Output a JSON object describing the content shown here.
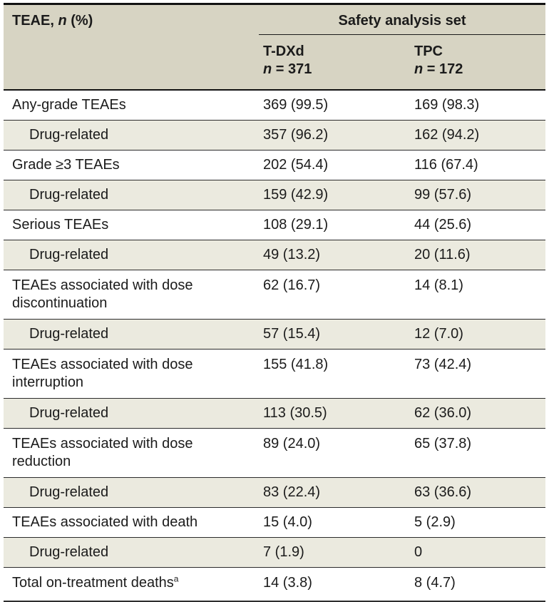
{
  "table": {
    "corner": {
      "pre": "TEAE, ",
      "n": "n",
      "post": " (%)"
    },
    "group_header": "Safety analysis set",
    "columns": [
      {
        "name": "T-DXd",
        "n": "n",
        "n_rest": " = 371"
      },
      {
        "name": "TPC",
        "n": "n",
        "n_rest": " = 172"
      }
    ],
    "rows": [
      {
        "label": "Any-grade TEAEs",
        "tdxd": "369 (99.5)",
        "tpc": "169 (98.3)"
      },
      {
        "label": "Drug-related",
        "tdxd": "357 (96.2)",
        "tpc": "162 (94.2)"
      },
      {
        "label": "Grade ≥3 TEAEs",
        "tdxd": "202 (54.4)",
        "tpc": "116 (67.4)"
      },
      {
        "label": "Drug-related",
        "tdxd": "159 (42.9)",
        "tpc": "99 (57.6)"
      },
      {
        "label": "Serious TEAEs",
        "tdxd": "108 (29.1)",
        "tpc": "44 (25.6)"
      },
      {
        "label": "Drug-related",
        "tdxd": "49 (13.2)",
        "tpc": "20 (11.6)"
      },
      {
        "label": "TEAEs associated with dose discontinuation",
        "tdxd": "62 (16.7)",
        "tpc": "14 (8.1)"
      },
      {
        "label": "Drug-related",
        "tdxd": "57 (15.4)",
        "tpc": "12 (7.0)"
      },
      {
        "label": "TEAEs associated with dose interruption",
        "tdxd": "155 (41.8)",
        "tpc": "73 (42.4)"
      },
      {
        "label": "Drug-related",
        "tdxd": "113 (30.5)",
        "tpc": "62 (36.0)"
      },
      {
        "label": "TEAEs associated with dose reduction",
        "tdxd": "89 (24.0)",
        "tpc": "65 (37.8)"
      },
      {
        "label": "Drug-related",
        "tdxd": "83 (22.4)",
        "tpc": "63 (36.6)"
      },
      {
        "label": "TEAEs associated with death",
        "tdxd": "15 (4.0)",
        "tpc": "5 (2.9)"
      },
      {
        "label": "Drug-related",
        "tdxd": "7 (1.9)",
        "tpc": "0"
      },
      {
        "label": "Total on-treatment deaths",
        "sup": "a",
        "tdxd": "14 (3.8)",
        "tpc": "8 (4.7)"
      }
    ],
    "colors": {
      "header_bg": "#d7d4c3",
      "shaded_row_bg": "#ebeadf",
      "rule": "#2b2b2b",
      "text": "#1b1b1b"
    }
  }
}
